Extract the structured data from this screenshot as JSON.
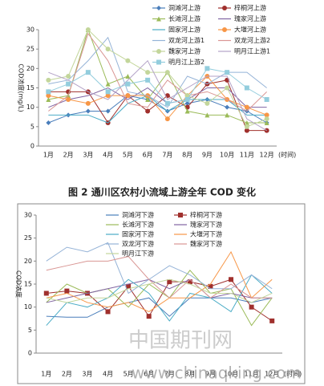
{
  "chart_data": [
    {
      "type": "line",
      "title": "图 2 通川区农村小流域上游全年 COD 变化",
      "y_label": "COD浓度(mg/L)",
      "x_label": "(时间)",
      "categories": [
        "1月",
        "2月",
        "3月",
        "4月",
        "5月",
        "6月",
        "7月",
        "8月",
        "9月",
        "10月",
        "11月",
        "12月"
      ],
      "ylim": [
        0,
        30
      ],
      "yticks": [
        0,
        5,
        10,
        15,
        20,
        25,
        30
      ],
      "series": [
        {
          "name": "洞滩河上游",
          "color": "#4a7ebb",
          "marker": "diamond",
          "values": [
            6,
            8,
            9,
            9,
            13,
            12,
            9,
            11,
            12,
            10,
            9,
            6
          ]
        },
        {
          "name": "梓桐河上游",
          "color": "#a0302d",
          "marker": "circle",
          "values": [
            14,
            14,
            14,
            6,
            13,
            9,
            13,
            10,
            16,
            17,
            4,
            4
          ]
        },
        {
          "name": "长滩河上游",
          "color": "#9bbb59",
          "marker": "triangle",
          "values": [
            12,
            13,
            30,
            16,
            18,
            12,
            19,
            9,
            8,
            8,
            6,
            6
          ]
        },
        {
          "name": "瑰家河上游",
          "color": "#8064a2",
          "marker": "none",
          "values": [
            10,
            12,
            13,
            15,
            12,
            15,
            11,
            12,
            15,
            15,
            10,
            10
          ]
        },
        {
          "name": "固家河上游",
          "color": "#4bacc6",
          "marker": "none",
          "values": [
            8,
            8,
            8,
            6,
            11,
            13,
            9,
            12,
            12,
            12,
            8,
            8
          ]
        },
        {
          "name": "大堰河上游",
          "color": "#f79646",
          "marker": "circle",
          "values": [
            13,
            12,
            11,
            13,
            13,
            13,
            7,
            13,
            18,
            12,
            10,
            8
          ]
        },
        {
          "name": "双龙河上游1",
          "color": "#95b3d7",
          "marker": "none",
          "values": [
            16,
            17,
            22,
            28,
            14,
            13,
            10,
            18,
            16,
            19,
            19,
            15
          ]
        },
        {
          "name": "双龙河上游2",
          "color": "#d99694",
          "marker": "none",
          "values": [
            9,
            13,
            29,
            22,
            11,
            10,
            17,
            13,
            14,
            12,
            9,
            14
          ]
        },
        {
          "name": "魏家河上游",
          "color": "#c3d69b",
          "marker": "circle",
          "values": [
            17,
            18,
            30,
            25,
            22,
            19,
            19,
            13,
            11,
            15,
            5,
            7
          ]
        },
        {
          "name": "明月江上游1",
          "color": "#b3a2c7",
          "marker": "none",
          "values": [
            19,
            17,
            14,
            12,
            17,
            22,
            12,
            15,
            18,
            18,
            7,
            4
          ]
        },
        {
          "name": "明月江上游2",
          "color": "#93cddd",
          "marker": "square",
          "values": [
            14,
            16,
            19,
            14,
            16,
            17,
            11,
            12,
            20,
            19,
            15,
            12
          ]
        }
      ]
    },
    {
      "type": "line",
      "y_label": "COD浓度",
      "x_label": "(时间)",
      "watermark": [
        "中国期刊网",
        "www.chinaqking.com"
      ],
      "categories": [
        "1月",
        "2月",
        "3月",
        "4月",
        "5月",
        "6月",
        "7月",
        "8月",
        "9月",
        "10月",
        "11月",
        "12月"
      ],
      "ylim": [
        0,
        30
      ],
      "yticks": [
        0,
        5,
        10,
        15,
        20,
        25,
        30
      ],
      "series": [
        {
          "name": "洞滩河下游",
          "color": "#4a7ebb",
          "marker": "none",
          "values": [
            8,
            7.8,
            7.8,
            10,
            11,
            12,
            8,
            12,
            12,
            12,
            11,
            12
          ]
        },
        {
          "name": "梓桐河下游",
          "color": "#a0302d",
          "marker": "square",
          "values": [
            13,
            13.5,
            13,
            9,
            14.5,
            8,
            15.5,
            15.5,
            14.5,
            16,
            10,
            7
          ]
        },
        {
          "name": "长滩河下游",
          "color": "#9bbb59",
          "marker": "none",
          "values": [
            11,
            15,
            13,
            14,
            10,
            15,
            12,
            18,
            13,
            14,
            6,
            12
          ]
        },
        {
          "name": "瑰家河下游",
          "color": "#8064a2",
          "marker": "none",
          "values": [
            11,
            12,
            13,
            14,
            15,
            16,
            14,
            16,
            12,
            13,
            12,
            12
          ]
        },
        {
          "name": "固家河下游",
          "color": "#4bacc6",
          "marker": "none",
          "values": [
            6,
            11,
            10,
            12,
            16,
            13,
            7,
            13,
            12,
            9,
            17,
            13
          ]
        },
        {
          "name": "大堰河下游",
          "color": "#f79646",
          "marker": "none",
          "values": [
            12,
            13,
            11,
            10,
            11,
            9,
            12,
            12,
            15,
            22,
            12,
            16
          ]
        },
        {
          "name": "双龙河下游",
          "color": "#95b3d7",
          "marker": "none",
          "values": [
            20,
            23,
            22,
            24,
            13,
            16,
            19,
            17,
            14,
            14,
            17,
            14
          ]
        },
        {
          "name": "魏家河下游",
          "color": "#d99694",
          "marker": "none",
          "values": [
            18,
            19,
            20,
            20,
            21,
            16,
            12,
            16,
            12,
            15,
            12,
            12
          ]
        },
        {
          "name": "明月江下游",
          "color": "#c3d69b",
          "marker": "none",
          "values": [
            12,
            11,
            12,
            12,
            14,
            15,
            16,
            15,
            13,
            13,
            11,
            13
          ]
        }
      ]
    }
  ]
}
